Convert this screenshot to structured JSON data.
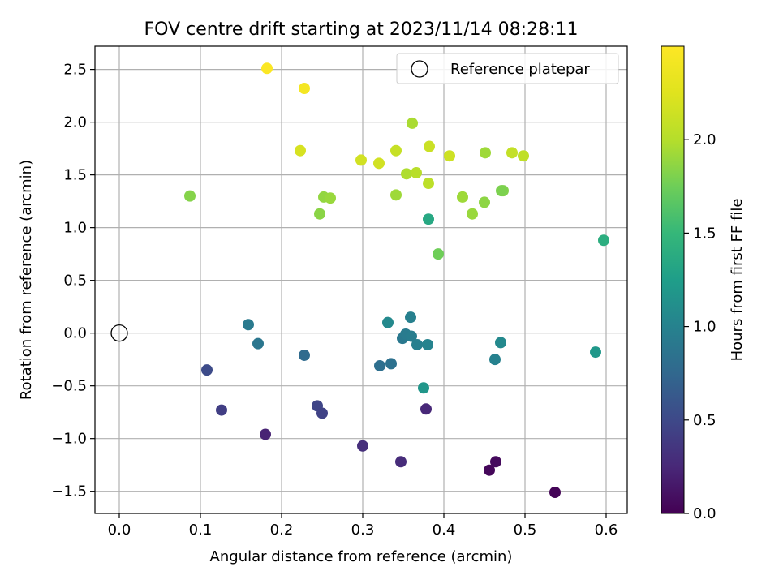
{
  "chart_data": {
    "type": "scatter",
    "title": "FOV centre drift starting at 2023/11/14 08:28:11",
    "xlabel": "Angular distance from reference (arcmin)",
    "ylabel": "Rotation from reference (arcmin)",
    "xlim": [
      -0.03,
      0.626
    ],
    "ylim": [
      -1.71,
      2.72
    ],
    "xticks": [
      "0.0",
      "0.1",
      "0.2",
      "0.3",
      "0.4",
      "0.5",
      "0.6"
    ],
    "yticks": [
      "−1.5",
      "−1.0",
      "−0.5",
      "0.0",
      "0.5",
      "1.0",
      "1.5",
      "2.0",
      "2.5"
    ],
    "grid": true,
    "legend_position": "top-right",
    "reference": {
      "label": "Reference platepar",
      "x": 0.0,
      "y": 0.0
    },
    "colorbar": {
      "label": "Hours from first FF file",
      "colormap": "viridis",
      "range": [
        0.0,
        2.5
      ],
      "ticks": [
        "0.0",
        "0.5",
        "1.0",
        "1.5",
        "2.0"
      ]
    },
    "points": [
      {
        "x": 0.537,
        "y": -1.51,
        "hours": 0.02
      },
      {
        "x": 0.456,
        "y": -1.3,
        "hours": 0.04
      },
      {
        "x": 0.464,
        "y": -1.22,
        "hours": 0.06
      },
      {
        "x": 0.347,
        "y": -1.22,
        "hours": 0.28
      },
      {
        "x": 0.3,
        "y": -1.07,
        "hours": 0.3
      },
      {
        "x": 0.18,
        "y": -0.96,
        "hours": 0.22
      },
      {
        "x": 0.378,
        "y": -0.72,
        "hours": 0.25
      },
      {
        "x": 0.126,
        "y": -0.73,
        "hours": 0.42
      },
      {
        "x": 0.244,
        "y": -0.69,
        "hours": 0.47
      },
      {
        "x": 0.25,
        "y": -0.76,
        "hours": 0.45
      },
      {
        "x": 0.108,
        "y": -0.35,
        "hours": 0.52
      },
      {
        "x": 0.228,
        "y": -0.21,
        "hours": 0.78
      },
      {
        "x": 0.321,
        "y": -0.31,
        "hours": 0.82
      },
      {
        "x": 0.335,
        "y": -0.29,
        "hours": 0.84
      },
      {
        "x": 0.171,
        "y": -0.1,
        "hours": 0.88
      },
      {
        "x": 0.159,
        "y": 0.08,
        "hours": 0.92
      },
      {
        "x": 0.331,
        "y": 0.1,
        "hours": 1.06
      },
      {
        "x": 0.349,
        "y": -0.05,
        "hours": 0.9
      },
      {
        "x": 0.353,
        "y": -0.01,
        "hours": 0.93
      },
      {
        "x": 0.36,
        "y": -0.03,
        "hours": 0.95
      },
      {
        "x": 0.359,
        "y": 0.15,
        "hours": 0.98
      },
      {
        "x": 0.367,
        "y": -0.11,
        "hours": 0.97
      },
      {
        "x": 0.38,
        "y": -0.11,
        "hours": 1.01
      },
      {
        "x": 0.375,
        "y": -0.52,
        "hours": 1.18
      },
      {
        "x": 0.463,
        "y": -0.25,
        "hours": 0.99
      },
      {
        "x": 0.47,
        "y": -0.09,
        "hours": 1.06
      },
      {
        "x": 0.587,
        "y": -0.18,
        "hours": 1.2
      },
      {
        "x": 0.381,
        "y": 1.08,
        "hours": 1.35
      },
      {
        "x": 0.597,
        "y": 0.88,
        "hours": 1.4
      },
      {
        "x": 0.393,
        "y": 0.75,
        "hours": 1.75
      },
      {
        "x": 0.087,
        "y": 1.3,
        "hours": 1.83
      },
      {
        "x": 0.247,
        "y": 1.13,
        "hours": 1.85
      },
      {
        "x": 0.252,
        "y": 1.29,
        "hours": 1.88
      },
      {
        "x": 0.26,
        "y": 1.28,
        "hours": 1.9
      },
      {
        "x": 0.341,
        "y": 1.31,
        "hours": 1.92
      },
      {
        "x": 0.435,
        "y": 1.13,
        "hours": 1.9
      },
      {
        "x": 0.45,
        "y": 1.24,
        "hours": 1.86
      },
      {
        "x": 0.423,
        "y": 1.29,
        "hours": 1.92
      },
      {
        "x": 0.473,
        "y": 1.35,
        "hours": 1.82
      },
      {
        "x": 0.471,
        "y": 1.35,
        "hours": 1.8
      },
      {
        "x": 0.451,
        "y": 1.71,
        "hours": 1.92
      },
      {
        "x": 0.361,
        "y": 1.99,
        "hours": 1.96
      },
      {
        "x": 0.354,
        "y": 1.51,
        "hours": 1.98
      },
      {
        "x": 0.366,
        "y": 1.52,
        "hours": 2.02
      },
      {
        "x": 0.381,
        "y": 1.42,
        "hours": 2.04
      },
      {
        "x": 0.341,
        "y": 1.73,
        "hours": 2.1
      },
      {
        "x": 0.382,
        "y": 1.77,
        "hours": 2.12
      },
      {
        "x": 0.407,
        "y": 1.68,
        "hours": 2.14
      },
      {
        "x": 0.484,
        "y": 1.71,
        "hours": 2.08
      },
      {
        "x": 0.498,
        "y": 1.68,
        "hours": 2.06
      },
      {
        "x": 0.298,
        "y": 1.64,
        "hours": 2.16
      },
      {
        "x": 0.32,
        "y": 1.61,
        "hours": 2.16
      },
      {
        "x": 0.223,
        "y": 1.73,
        "hours": 2.2
      },
      {
        "x": 0.228,
        "y": 2.32,
        "hours": 2.42
      },
      {
        "x": 0.182,
        "y": 2.51,
        "hours": 2.48
      }
    ]
  }
}
